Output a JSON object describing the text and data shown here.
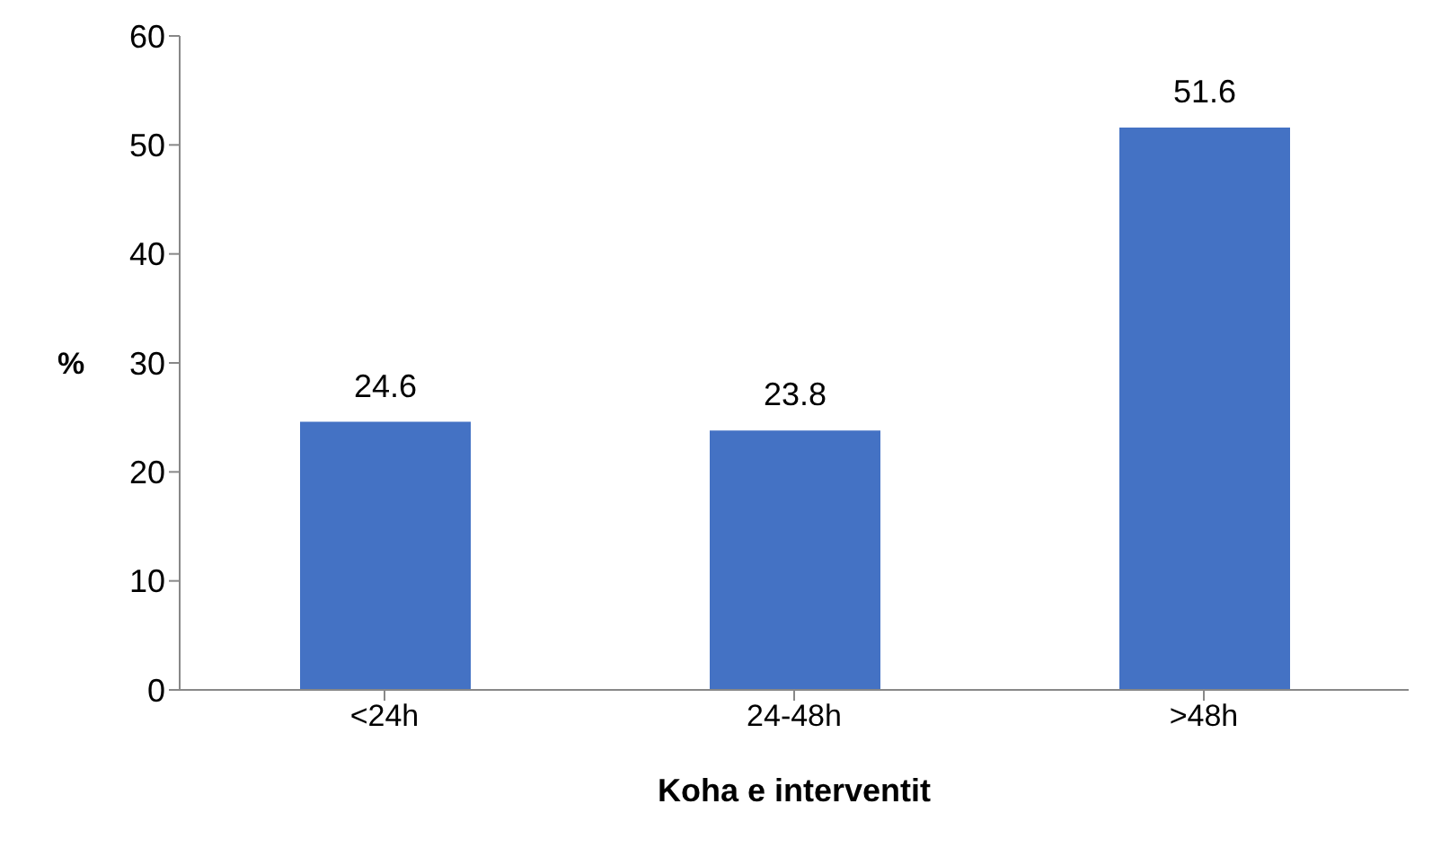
{
  "chart_data": {
    "type": "bar",
    "xlabel": "Koha e interventit",
    "ylabel": "%",
    "categories": [
      "<24h",
      "24-48h",
      ">48h"
    ],
    "values": [
      24.6,
      23.8,
      51.6
    ],
    "color": "#4472c4",
    "ylim": [
      0,
      60
    ],
    "yticks": [
      0,
      10,
      20,
      30,
      40,
      50,
      60
    ],
    "grid": false,
    "data_labels": true
  }
}
